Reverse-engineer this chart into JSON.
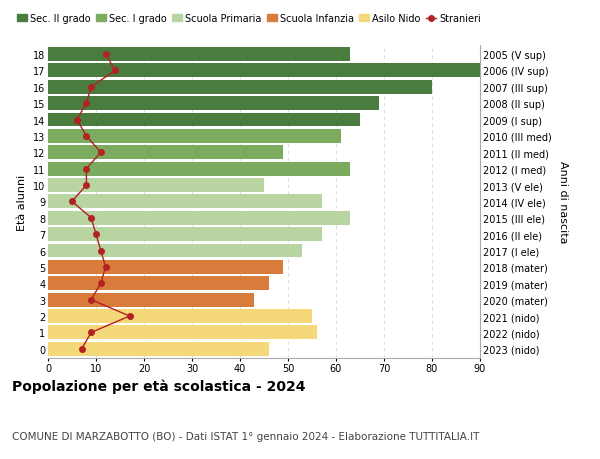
{
  "ages": [
    18,
    17,
    16,
    15,
    14,
    13,
    12,
    11,
    10,
    9,
    8,
    7,
    6,
    5,
    4,
    3,
    2,
    1,
    0
  ],
  "right_labels": [
    "2005 (V sup)",
    "2006 (IV sup)",
    "2007 (III sup)",
    "2008 (II sup)",
    "2009 (I sup)",
    "2010 (III med)",
    "2011 (II med)",
    "2012 (I med)",
    "2013 (V ele)",
    "2014 (IV ele)",
    "2015 (III ele)",
    "2016 (II ele)",
    "2017 (I ele)",
    "2018 (mater)",
    "2019 (mater)",
    "2020 (mater)",
    "2021 (nido)",
    "2022 (nido)",
    "2023 (nido)"
  ],
  "bar_values": [
    63,
    90,
    80,
    69,
    65,
    61,
    49,
    63,
    45,
    57,
    63,
    57,
    53,
    49,
    46,
    43,
    55,
    56,
    46
  ],
  "bar_colors": [
    "#4a7c3f",
    "#4a7c3f",
    "#4a7c3f",
    "#4a7c3f",
    "#4a7c3f",
    "#7aab5e",
    "#7aab5e",
    "#7aab5e",
    "#b8d4a0",
    "#b8d4a0",
    "#b8d4a0",
    "#b8d4a0",
    "#b8d4a0",
    "#d97b3a",
    "#d97b3a",
    "#d97b3a",
    "#f5d87a",
    "#f5d87a",
    "#f5d87a"
  ],
  "stranieri_values": [
    12,
    14,
    9,
    8,
    6,
    8,
    11,
    8,
    8,
    5,
    9,
    10,
    11,
    12,
    11,
    9,
    17,
    9,
    7
  ],
  "stranieri_color": "#b22222",
  "legend_items": [
    {
      "label": "Sec. II grado",
      "color": "#4a7c3f"
    },
    {
      "label": "Sec. I grado",
      "color": "#7aab5e"
    },
    {
      "label": "Scuola Primaria",
      "color": "#b8d4a0"
    },
    {
      "label": "Scuola Infanzia",
      "color": "#d97b3a"
    },
    {
      "label": "Asilo Nido",
      "color": "#f5d87a"
    },
    {
      "label": "Stranieri",
      "color": "#b22222"
    }
  ],
  "ylabel_left": "Età alunni",
  "ylabel_right": "Anni di nascita",
  "xlim": [
    0,
    90
  ],
  "xticks": [
    0,
    10,
    20,
    30,
    40,
    50,
    60,
    70,
    80,
    90
  ],
  "title": "Popolazione per età scolastica - 2024",
  "subtitle": "COMUNE DI MARZABOTTO (BO) - Dati ISTAT 1° gennaio 2024 - Elaborazione TUTTITALIA.IT",
  "title_fontsize": 10,
  "subtitle_fontsize": 7.5,
  "bar_height": 0.85,
  "background_color": "#ffffff",
  "grid_color": "#dddddd"
}
